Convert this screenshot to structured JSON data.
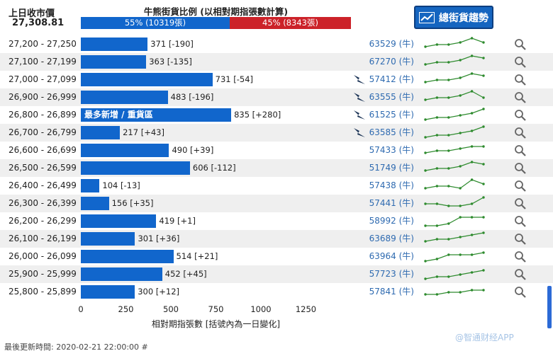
{
  "header": {
    "prev_close_label": "上日收市價",
    "prev_close_value": "27,308.81",
    "ratio_title": "牛熊街貨比例 (以相對期指張數計算)",
    "bull_text": "55% (10319張)",
    "bear_text": "45% (8343張)",
    "bull_pct": 55,
    "trend_button_label": "總街貨趨勢"
  },
  "chart_data": {
    "type": "bar",
    "orientation": "horizontal",
    "categories": [
      "27,200 - 27,250",
      "27,100 - 27,199",
      "27,000 - 27,099",
      "26,900 - 26,999",
      "26,800 - 26,899",
      "26,700 - 26,799",
      "26,600 - 26,699",
      "26,500 - 26,599",
      "26,400 - 26,499",
      "26,300 - 26,399",
      "26,200 - 26,299",
      "26,100 - 26,199",
      "26,000 - 26,099",
      "25,900 - 25,999",
      "25,800 - 25,899"
    ],
    "values": [
      371,
      363,
      731,
      483,
      835,
      217,
      490,
      606,
      104,
      156,
      419,
      301,
      514,
      452,
      300
    ],
    "changes": [
      "-190",
      "-135",
      "-54",
      "-196",
      "+280",
      "+43",
      "+39",
      "-112",
      "-13",
      "+35",
      "+1",
      "+36",
      "+21",
      "+45",
      "+12"
    ],
    "bar_labels": [
      "371 [-190]",
      "363 [-135]",
      "731 [-54]",
      "483 [-196]",
      "835 [+280]",
      "217 [+43]",
      "490 [+39]",
      "606 [-112]",
      "104 [-13]",
      "156 [+35]",
      "419 [+1]",
      "301 [+36]",
      "514 [+21]",
      "452 [+45]",
      "300 [+12]"
    ],
    "highlight_index": 4,
    "highlight_text": "最多新增 / 重貨區",
    "xlim": [
      0,
      1500
    ],
    "xticks": [
      0,
      250,
      500,
      750,
      1000,
      1250
    ],
    "xlabel": "相對期指張數 [括號內為一日變化]",
    "grid": false
  },
  "bull_links": [
    "63529 (牛)",
    "67270 (牛)",
    "57412 (牛)",
    "63555 (牛)",
    "61525 (牛)",
    "63585 (牛)",
    "57433 (牛)",
    "51749 (牛)",
    "57438 (牛)",
    "57441 (牛)",
    "58992 (牛)",
    "63689 (牛)",
    "63964 (牛)",
    "57723 (牛)",
    "57841 (牛)"
  ],
  "bear_icon_rows": [
    2,
    3,
    4,
    5
  ],
  "sparklines": [
    [
      3,
      4,
      4,
      5,
      7,
      5
    ],
    [
      3,
      4,
      4,
      5,
      7,
      6
    ],
    [
      3,
      4,
      4,
      5,
      7,
      6
    ],
    [
      3,
      4,
      4,
      5,
      7,
      4
    ],
    [
      2,
      3,
      3,
      4,
      5,
      7
    ],
    [
      2,
      3,
      3,
      4,
      5,
      7
    ],
    [
      3,
      4,
      4,
      5,
      6,
      6
    ],
    [
      3,
      4,
      4,
      5,
      7,
      6
    ],
    [
      3,
      4,
      4,
      3,
      7,
      5
    ],
    [
      4,
      4,
      3,
      3,
      4,
      7
    ],
    [
      2,
      2,
      3,
      6,
      6,
      6
    ],
    [
      3,
      4,
      4,
      5,
      6,
      7
    ],
    [
      2,
      3,
      5,
      5,
      5,
      6
    ],
    [
      2,
      3,
      3,
      4,
      5,
      6
    ],
    [
      3,
      3,
      4,
      4,
      5,
      5
    ]
  ],
  "footer_text": "最後更新時間: 2020-02-21 22:00:00 #",
  "watermark_text": "@智通财经APP",
  "colors": {
    "bull": "#1166cc",
    "bear": "#cc2229",
    "sparkline": "#2e8b2e",
    "link": "#2e6ab0"
  },
  "icons": {
    "trend_icon": "line-chart-icon",
    "bear_icon": "bear-icon",
    "search_icon": "search-icon"
  }
}
